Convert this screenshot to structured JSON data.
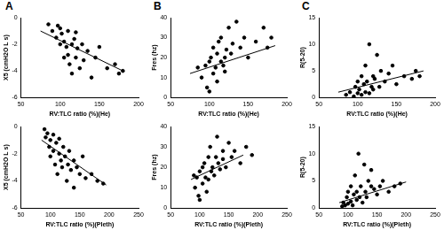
{
  "chart_data": [
    {
      "type": "scatter",
      "title": "A",
      "x_label": "RV:TLC ratio (%)(He)",
      "y_label": "X5 (cmH2O L s)",
      "xlim": [
        50,
        200
      ],
      "xticks": [
        50,
        100,
        150,
        200
      ],
      "ylim": [
        -6,
        0
      ],
      "yticks": [
        -6,
        -4,
        -2,
        0
      ],
      "grid": false,
      "series": [
        {
          "type": "scatter",
          "marker": "circle",
          "color": "#000000",
          "x": [
            85,
            90,
            95,
            97,
            100,
            100,
            102,
            105,
            105,
            108,
            110,
            110,
            112,
            115,
            115,
            118,
            120,
            120,
            122,
            125,
            128,
            130,
            135,
            140,
            145,
            150,
            160,
            170,
            175,
            180
          ],
          "values": [
            -0.5,
            -1,
            -1.5,
            -0.6,
            -0.8,
            -2,
            -1.2,
            -1.8,
            -3,
            -2.2,
            -1,
            -2.8,
            -3.5,
            -2,
            -4.2,
            -1.6,
            -3,
            -1.1,
            -2.3,
            -3.8,
            -2,
            -3.2,
            -2.5,
            -4.5,
            -3,
            -2.2,
            -3.8,
            -3.5,
            -4.2,
            -4
          ]
        },
        {
          "type": "line",
          "line_style": "solid",
          "color": "#000000",
          "x": [
            75,
            180
          ],
          "values": [
            -1,
            -4
          ]
        }
      ]
    },
    {
      "type": "scatter",
      "title": "B",
      "x_label": "RV:TLC ratio (%)(He)",
      "y_label": "Fres (hz)",
      "xlim": [
        50,
        200
      ],
      "xticks": [
        50,
        100,
        150,
        200
      ],
      "ylim": [
        0,
        40
      ],
      "yticks": [
        0,
        10,
        20,
        30,
        40
      ],
      "grid": false,
      "series": [
        {
          "type": "scatter",
          "marker": "circle",
          "color": "#000000",
          "x": [
            85,
            90,
            95,
            97,
            100,
            100,
            102,
            105,
            105,
            108,
            110,
            110,
            112,
            115,
            115,
            118,
            120,
            120,
            122,
            125,
            128,
            130,
            135,
            140,
            145,
            150,
            160,
            170,
            175,
            180
          ],
          "values": [
            15,
            10,
            16,
            5,
            18,
            3,
            20,
            12,
            25,
            15,
            8,
            22,
            28,
            18,
            30,
            16,
            20,
            13,
            24,
            35,
            22,
            27,
            38,
            25,
            30,
            20,
            28,
            35,
            25,
            30
          ]
        },
        {
          "type": "line",
          "line_style": "solid",
          "color": "#000000",
          "x": [
            75,
            185
          ],
          "values": [
            12,
            26
          ]
        }
      ]
    },
    {
      "type": "scatter",
      "title": "C",
      "x_label": "RV:TLC ratio (%)(He)",
      "y_label": "R(5-20)",
      "xlim": [
        50,
        200
      ],
      "xticks": [
        50,
        100,
        150,
        200
      ],
      "ylim": [
        0,
        15
      ],
      "yticks": [
        0,
        5,
        10,
        15
      ],
      "grid": false,
      "series": [
        {
          "type": "scatter",
          "marker": "circle",
          "color": "#000000",
          "x": [
            85,
            90,
            95,
            97,
            100,
            100,
            102,
            105,
            105,
            108,
            110,
            110,
            112,
            115,
            115,
            118,
            120,
            120,
            122,
            125,
            128,
            130,
            135,
            140,
            145,
            150,
            160,
            170,
            175,
            180
          ],
          "values": [
            0.5,
            1,
            0.2,
            2,
            0.8,
            3,
            1.5,
            0.5,
            4,
            2.5,
            1,
            6,
            3,
            0.8,
            10,
            2,
            4,
            1.5,
            3.5,
            8,
            2,
            5,
            3,
            4.5,
            6,
            2.5,
            4,
            3.5,
            5,
            4
          ]
        },
        {
          "type": "line",
          "line_style": "solid",
          "color": "#000000",
          "x": [
            75,
            185
          ],
          "values": [
            1,
            5
          ]
        }
      ]
    },
    {
      "type": "scatter",
      "x_label": "RV:TLC ratio (%)(Pleth)",
      "y_label": "X5 (cmH2O L s)",
      "xlim": [
        50,
        250
      ],
      "xticks": [
        50,
        100,
        150,
        200,
        250
      ],
      "ylim": [
        -6,
        0
      ],
      "yticks": [
        -6,
        -4,
        -2,
        0
      ],
      "grid": false,
      "series": [
        {
          "type": "scatter",
          "marker": "circle",
          "color": "#000000",
          "x": [
            90,
            92,
            95,
            98,
            100,
            100,
            105,
            105,
            108,
            110,
            112,
            115,
            115,
            118,
            120,
            122,
            125,
            128,
            130,
            132,
            135,
            140,
            140,
            145,
            150,
            155,
            160,
            170,
            180,
            190
          ],
          "values": [
            -0.2,
            -0.8,
            -0.5,
            -1.5,
            -1,
            -2.2,
            -0.6,
            -1.8,
            -2.8,
            -1.2,
            -3.5,
            -2,
            -0.9,
            -2.5,
            -3,
            -1.5,
            -2.2,
            -4,
            -2.8,
            -1.8,
            -3.2,
            -2.5,
            -4.5,
            -3,
            -3.5,
            -2.2,
            -3.8,
            -3.5,
            -4,
            -4.2
          ]
        },
        {
          "type": "line",
          "line_style": "solid",
          "color": "#000000",
          "x": [
            85,
            195
          ],
          "values": [
            -1,
            -4.3
          ]
        }
      ]
    },
    {
      "type": "scatter",
      "x_label": "RV:TLC ratio (%)(Pleth)",
      "y_label": "Fres (hz)",
      "xlim": [
        50,
        250
      ],
      "xticks": [
        50,
        100,
        150,
        200,
        250
      ],
      "ylim": [
        0,
        40
      ],
      "yticks": [
        0,
        10,
        20,
        30,
        40
      ],
      "grid": false,
      "series": [
        {
          "type": "scatter",
          "marker": "circle",
          "color": "#000000",
          "x": [
            90,
            92,
            95,
            98,
            100,
            100,
            105,
            105,
            108,
            110,
            112,
            115,
            115,
            118,
            120,
            122,
            125,
            128,
            130,
            132,
            135,
            140,
            140,
            145,
            150,
            155,
            160,
            170,
            180,
            190
          ],
          "values": [
            16,
            10,
            15,
            6,
            18,
            4,
            20,
            12,
            22,
            15,
            8,
            25,
            14,
            30,
            18,
            20,
            16,
            25,
            35,
            22,
            19,
            28,
            24,
            20,
            32,
            25,
            28,
            22,
            30,
            26
          ]
        },
        {
          "type": "line",
          "line_style": "solid",
          "color": "#000000",
          "x": [
            85,
            175
          ],
          "values": [
            14,
            26
          ]
        }
      ]
    },
    {
      "type": "scatter",
      "x_label": "RV:TLC ratio (%)(Pleth)",
      "y_label": "R(5-20)",
      "xlim": [
        50,
        250
      ],
      "xticks": [
        50,
        100,
        150,
        200,
        250
      ],
      "ylim": [
        0,
        15
      ],
      "yticks": [
        0,
        5,
        10,
        15
      ],
      "grid": false,
      "series": [
        {
          "type": "scatter",
          "marker": "circle",
          "color": "#000000",
          "x": [
            90,
            92,
            95,
            98,
            100,
            100,
            105,
            105,
            108,
            110,
            112,
            115,
            115,
            118,
            120,
            122,
            125,
            128,
            130,
            132,
            135,
            140,
            140,
            145,
            150,
            155,
            160,
            170,
            180,
            190
          ],
          "values": [
            0.3,
            1,
            0.5,
            2,
            0.8,
            3,
            1.2,
            4,
            0.5,
            2.5,
            6,
            1.5,
            3,
            10,
            2,
            4,
            1,
            8,
            3,
            2,
            5,
            4,
            7,
            3.5,
            2.5,
            4,
            5,
            3,
            4,
            4.5
          ]
        },
        {
          "type": "line",
          "line_style": "solid",
          "color": "#000000",
          "x": [
            85,
            200
          ],
          "values": [
            1,
            4.8
          ]
        }
      ]
    }
  ]
}
